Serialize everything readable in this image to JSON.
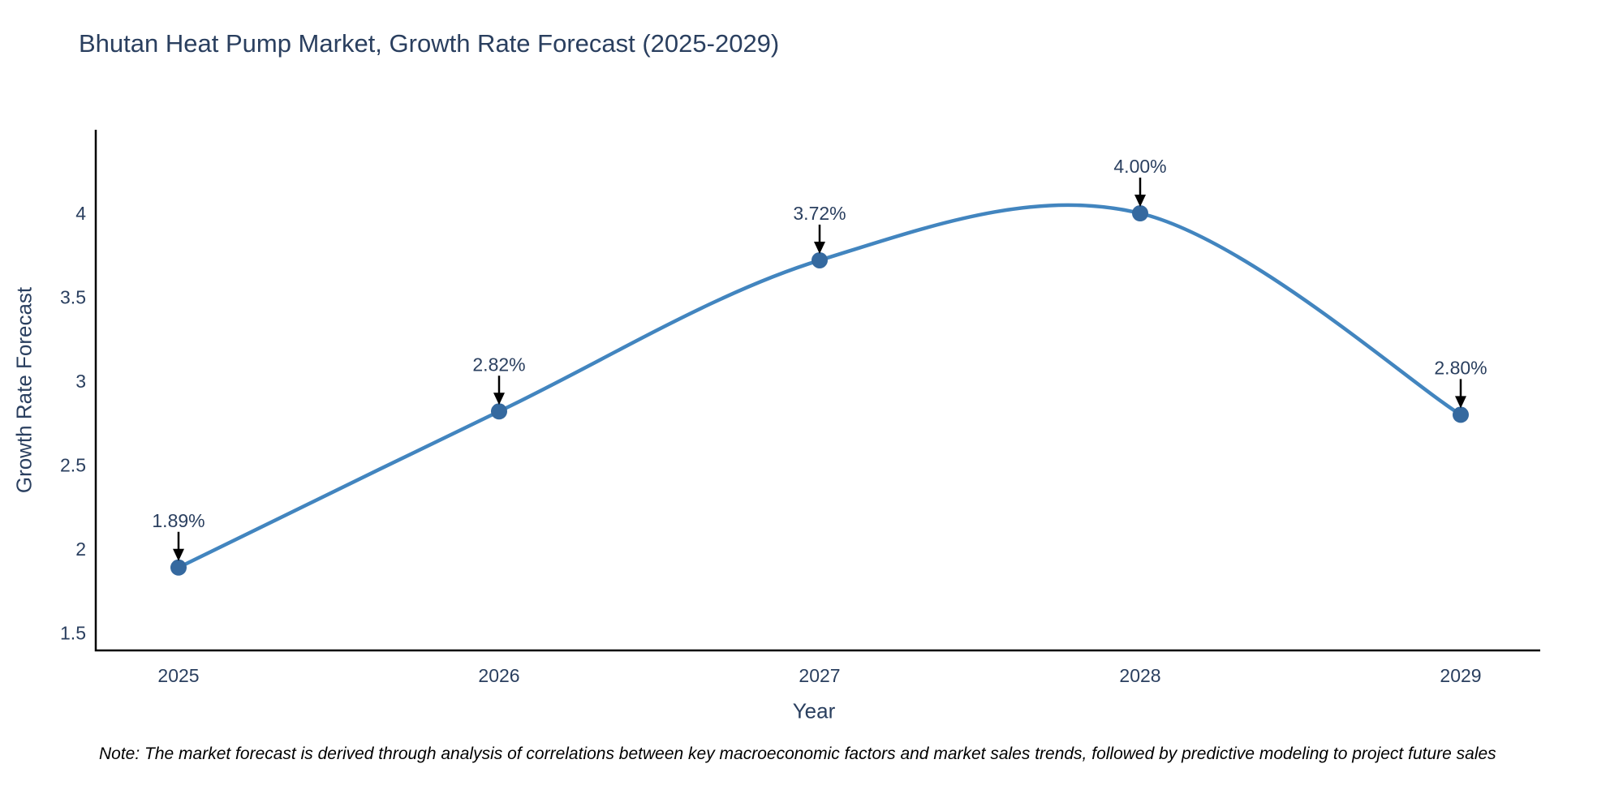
{
  "page": {
    "note": "Note: The market forecast is derived through analysis of correlations between key macroeconomic factors and market sales trends, followed by predictive modeling to project future sales"
  },
  "chart_data": {
    "type": "line",
    "line_shape": "spline",
    "title": "Bhutan Heat Pump Market, Growth Rate Forecast (2025-2029)",
    "xlabel": "Year",
    "ylabel": "Growth Rate Forecast",
    "x": [
      2025,
      2026,
      2027,
      2028,
      2029
    ],
    "categories": [
      "2025",
      "2026",
      "2027",
      "2028",
      "2029"
    ],
    "values": [
      1.89,
      2.82,
      3.72,
      4.0,
      2.8
    ],
    "point_labels": [
      "1.89%",
      "2.82%",
      "3.72%",
      "4.00%",
      "2.80%"
    ],
    "yticks": [
      1.5,
      2,
      2.5,
      3,
      3.5,
      4
    ],
    "ytick_labels": [
      "1.5",
      "2",
      "2.5",
      "3",
      "3.5",
      "4"
    ],
    "ylim": [
      1.4,
      4.5
    ],
    "xlim": [
      2024.75,
      2029.25
    ],
    "grid": false,
    "legend": "none",
    "colors": {
      "line": "#4285bf",
      "marker": "#35699f",
      "axis": "#000000",
      "text": "#2a3f5f",
      "annotation_arrow": "#000000",
      "note_text": "#000000",
      "background": "#ffffff"
    }
  }
}
